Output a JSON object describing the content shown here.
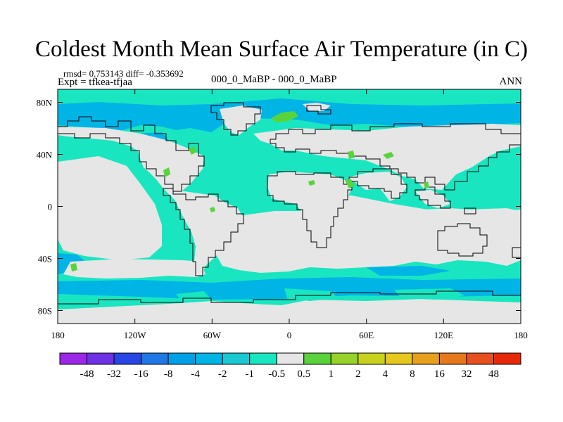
{
  "title": "Coldest Month Mean Surface Air Temperature (in C)",
  "stats": "rmsd= 0.753143  diff= -0.353692",
  "experiment": "Expt = tfkea-tfjaa",
  "comparison": "000_0_MaBP - 000_0_MaBP",
  "season": "ANN",
  "map": {
    "lon_range": [
      -180,
      180
    ],
    "lat_range": [
      -90,
      90
    ],
    "land_color": "#e6e6e6",
    "ocean_bias_color": "#19e6c0",
    "ocean_bias_deep_color": "#00b4e6",
    "warm_patch_color": "#5ad23c"
  },
  "axes": {
    "x_ticks": [
      {
        "value": -180,
        "label": "180"
      },
      {
        "value": -120,
        "label": "120W"
      },
      {
        "value": -60,
        "label": "60W"
      },
      {
        "value": 0,
        "label": "0"
      },
      {
        "value": 60,
        "label": "60E"
      },
      {
        "value": 120,
        "label": "120E"
      },
      {
        "value": 180,
        "label": "180"
      }
    ],
    "y_ticks": [
      {
        "value": 80,
        "label": "80N"
      },
      {
        "value": 40,
        "label": "40N"
      },
      {
        "value": 0,
        "label": "0"
      },
      {
        "value": -40,
        "label": "40S"
      },
      {
        "value": -80,
        "label": "80S"
      }
    ]
  },
  "colorbar": {
    "colors": [
      "#9b28e6",
      "#6e32e6",
      "#2846e6",
      "#1e78e6",
      "#00a0e6",
      "#00b4e6",
      "#19c8d2",
      "#19e6c0",
      "#e6e6e6",
      "#5ad23c",
      "#96d228",
      "#c8d21e",
      "#e6c81e",
      "#e6a01e",
      "#e6781e",
      "#e6501e",
      "#e6280a"
    ],
    "labels": [
      "-48",
      "-32",
      "-16",
      "-8",
      "-4",
      "-2",
      "-1",
      "-0.5",
      "0.5",
      "1",
      "2",
      "4",
      "8",
      "16",
      "32",
      "48"
    ]
  }
}
